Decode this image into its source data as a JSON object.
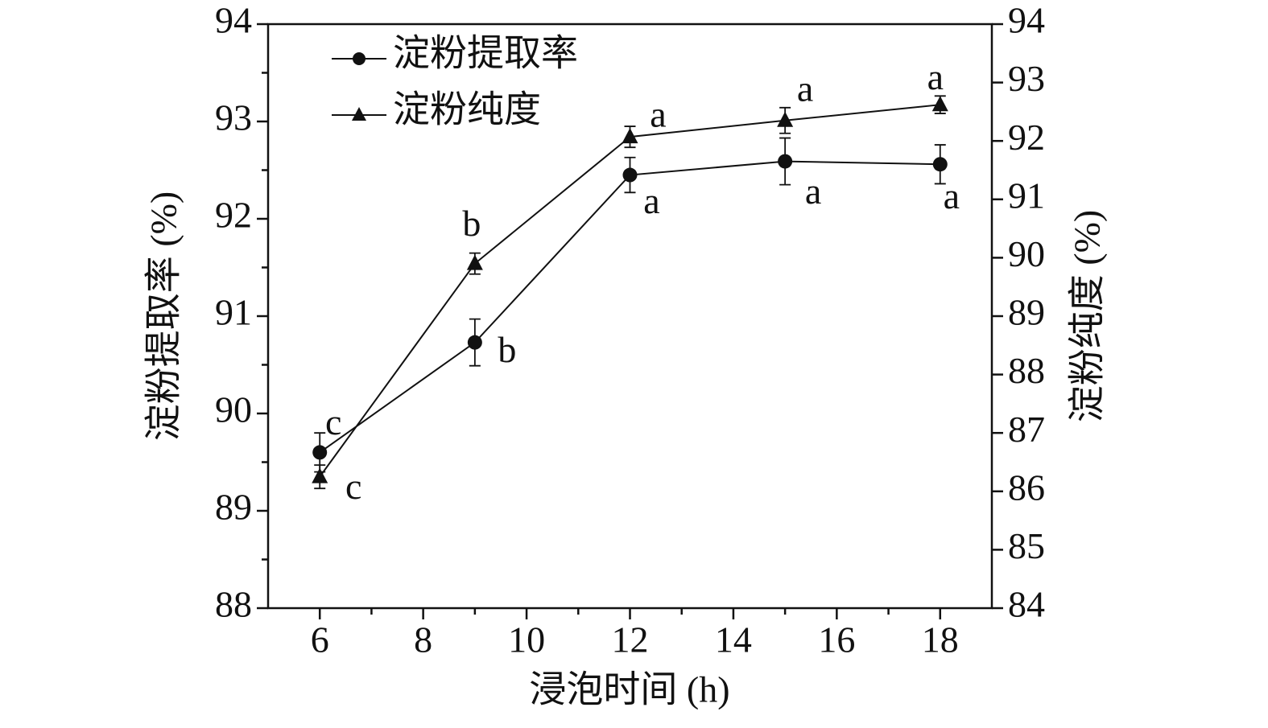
{
  "chart_data": {
    "type": "line",
    "x_label": "浸泡时间 (h)",
    "y_label": "淀粉提取率 (%)",
    "y2_label": "淀粉纯度 (%)",
    "x": [
      6,
      9,
      12,
      15,
      18
    ],
    "xlim": [
      5,
      19
    ],
    "xticks": [
      6,
      8,
      10,
      12,
      14,
      16,
      18
    ],
    "minor_xticks": [
      7,
      9,
      11,
      13,
      15,
      17
    ],
    "ylim": [
      88,
      94
    ],
    "yticks": [
      88,
      89,
      90,
      91,
      92,
      93,
      94
    ],
    "minor_yticks": [
      88.5,
      89.5,
      90.5,
      91.5,
      92.5,
      93.5
    ],
    "y2lim": [
      84,
      94
    ],
    "y2ticks": [
      84,
      85,
      86,
      87,
      88,
      89,
      90,
      91,
      92,
      93,
      94
    ],
    "legend": "upper left",
    "series": [
      {
        "name": "淀粉提取率",
        "color": "#111111",
        "marker": "circle",
        "values": [
          89.6,
          90.73,
          92.45,
          92.59,
          92.56
        ],
        "errors": [
          0.2,
          0.24,
          0.18,
          0.24,
          0.2
        ],
        "labels": [
          "c",
          "b",
          "a",
          "a",
          "a"
        ]
      },
      {
        "name": "淀粉纯度",
        "color": "#111111",
        "marker": "triangle",
        "axis": "y2",
        "values": [
          86.25,
          89.9,
          92.07,
          92.35,
          92.62
        ],
        "errors": [
          0.2,
          0.18,
          0.18,
          0.22,
          0.15
        ],
        "labels": [
          "c",
          "b",
          "a",
          "a",
          "a"
        ]
      }
    ]
  }
}
